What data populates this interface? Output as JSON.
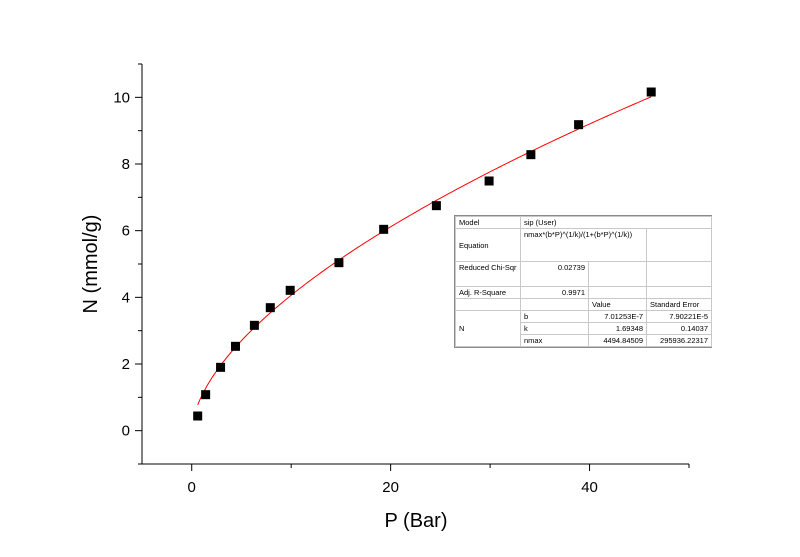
{
  "chart_data": {
    "type": "scatter",
    "xlabel": "P (Bar)",
    "ylabel": "N (mmol/g)",
    "xlim": [
      -5,
      50
    ],
    "ylim": [
      -1,
      11
    ],
    "x_ticks": [
      "0",
      "20",
      "40"
    ],
    "y_ticks": [
      "0",
      "2",
      "4",
      "6",
      "8",
      "10"
    ],
    "x_tick_values": [
      0,
      20,
      40
    ],
    "y_tick_values": [
      0,
      2,
      4,
      6,
      8,
      10
    ],
    "grid": false,
    "series": [
      {
        "marker": "square",
        "color": "#000000",
        "x": [
          0.6,
          1.4,
          2.9,
          4.4,
          6.3,
          7.9,
          9.9,
          14.8,
          19.3,
          24.6,
          29.9,
          34.1,
          38.9,
          46.2
        ],
        "y": [
          0.44,
          1.08,
          1.9,
          2.53,
          3.16,
          3.69,
          4.21,
          5.04,
          6.04,
          6.75,
          7.49,
          8.28,
          9.18,
          10.16
        ]
      },
      {
        "kind": "fit",
        "color": "#ff0000",
        "model": "sip",
        "params": {
          "b": 7.01253e-07,
          "k": 1.69348,
          "nmax": 4494.84509
        },
        "x_range": [
          0.6,
          46.2
        ]
      }
    ],
    "fit_table": {
      "model_label": "Model",
      "model_value": "sip (User)",
      "equation_label": "Equation",
      "equation_value": "nmax*(b*P)^(1/k)/(1+(b*P)^(1/k))",
      "chisqr_label": "Reduced Chi-Sqr",
      "chisqr_value": "0.02739",
      "adjr2_label": "Adj. R-Square",
      "adjr2_value": "0.9971",
      "value_header": "Value",
      "stderr_header": "Standard Error",
      "param_group": "N",
      "params": [
        {
          "name": "b",
          "value": "7.01253E-7",
          "stderr": "7.90221E-5"
        },
        {
          "name": "k",
          "value": "1.69348",
          "stderr": "0.14037"
        },
        {
          "name": "nmax",
          "value": "4494.84509",
          "stderr": "295936.22317"
        }
      ]
    }
  }
}
